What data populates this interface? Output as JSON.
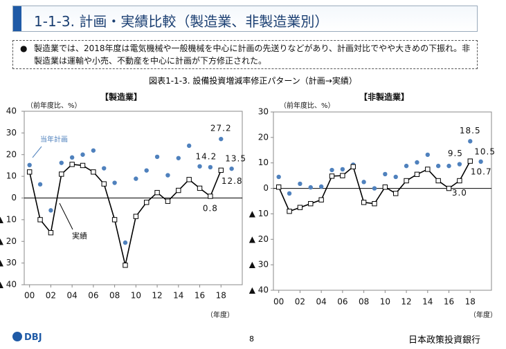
{
  "header": {
    "title": "1-1-3. 計画・実績比較（製造業、非製造業別）"
  },
  "note": {
    "bullet": "●",
    "text": "製造業では、2018年度は電気機械や一般機械を中心に計画の先送りなどがあり、計画対比でやや大きめの下振れ。非製造業は運輸や小売、不動産を中心に計画が下方修正された。"
  },
  "figure_caption": "図表1-1-3. 設備投資増減率修正パターン（計画→実績）",
  "chart_data": [
    {
      "type": "line",
      "title": "【製造業】",
      "y_label": "（前年度比、%）",
      "x_label": "（年度）",
      "x": [
        0,
        1,
        2,
        3,
        4,
        5,
        6,
        7,
        8,
        9,
        10,
        11,
        12,
        13,
        14,
        15,
        16,
        17,
        18,
        19
      ],
      "xlim": [
        -0.5,
        20
      ],
      "xticks": [
        {
          "value": 0,
          "label": "00"
        },
        {
          "value": 2,
          "label": "02"
        },
        {
          "value": 4,
          "label": "04"
        },
        {
          "value": 6,
          "label": "06"
        },
        {
          "value": 8,
          "label": "08"
        },
        {
          "value": 10,
          "label": "10"
        },
        {
          "value": 12,
          "label": "12"
        },
        {
          "value": 14,
          "label": "14"
        },
        {
          "value": 16,
          "label": "16"
        },
        {
          "value": 18,
          "label": "18"
        }
      ],
      "ylim": [
        -40,
        40
      ],
      "yticks": [
        40,
        30,
        20,
        10,
        0,
        {
          "value": -10,
          "label": "▲ 10"
        },
        {
          "value": -20,
          "label": "▲ 20"
        },
        {
          "value": -30,
          "label": "▲ 30"
        },
        {
          "value": -40,
          "label": "▲ 40"
        }
      ],
      "series": [
        {
          "name": "当年計画",
          "color": "#4f81bd",
          "marker": "dot",
          "values": [
            15.2,
            6.3,
            -5.7,
            16.2,
            18.7,
            20,
            21.9,
            13.7,
            7,
            -20.6,
            8.9,
            12.7,
            19,
            10.5,
            18.4,
            24.1,
            14.6,
            14.2,
            27.2,
            13.5
          ],
          "value_labels": [
            null,
            null,
            null,
            null,
            null,
            null,
            null,
            null,
            null,
            null,
            null,
            null,
            null,
            null,
            null,
            null,
            null,
            "14.2",
            "27.2",
            "13.5"
          ]
        },
        {
          "name": "実績",
          "color": "#000000",
          "marker": "square",
          "values": [
            12,
            -10,
            -16,
            11,
            15.5,
            15,
            12,
            6.5,
            -10,
            -31,
            -8.5,
            -2,
            2.5,
            -1.5,
            3.5,
            8.5,
            4.5,
            0.8,
            12.8,
            null
          ],
          "value_labels": [
            null,
            null,
            null,
            null,
            null,
            null,
            null,
            null,
            null,
            null,
            null,
            null,
            null,
            null,
            null,
            null,
            null,
            "0.8",
            "12.8",
            null
          ]
        }
      ]
    },
    {
      "type": "line",
      "title": "【非製造業】",
      "y_label": "（前年度比、%）",
      "x_label": "（年度）",
      "x": [
        0,
        1,
        2,
        3,
        4,
        5,
        6,
        7,
        8,
        9,
        10,
        11,
        12,
        13,
        14,
        15,
        16,
        17,
        18,
        19
      ],
      "xlim": [
        -0.5,
        20
      ],
      "xticks": [
        {
          "value": 0,
          "label": "00"
        },
        {
          "value": 2,
          "label": "02"
        },
        {
          "value": 4,
          "label": "04"
        },
        {
          "value": 6,
          "label": "06"
        },
        {
          "value": 8,
          "label": "08"
        },
        {
          "value": 10,
          "label": "10"
        },
        {
          "value": 12,
          "label": "12"
        },
        {
          "value": 14,
          "label": "14"
        },
        {
          "value": 16,
          "label": "16"
        },
        {
          "value": 18,
          "label": "18"
        }
      ],
      "ylim": [
        -40,
        30
      ],
      "yticks": [
        30,
        20,
        10,
        0,
        {
          "value": -10,
          "label": "▲ 10"
        },
        {
          "value": -20,
          "label": "▲ 20"
        },
        {
          "value": -30,
          "label": "▲ 30"
        },
        {
          "value": -40,
          "label": "▲ 40"
        }
      ],
      "series": [
        {
          "name": "当年計画",
          "color": "#4f81bd",
          "marker": "dot",
          "values": [
            4.5,
            -2,
            1.8,
            0.4,
            0.7,
            7.2,
            7.5,
            9.3,
            2.5,
            0,
            5.6,
            4.5,
            8.8,
            10.2,
            13.2,
            8.8,
            8.8,
            9.5,
            18.5,
            10.5
          ],
          "value_labels": [
            null,
            null,
            null,
            null,
            null,
            null,
            null,
            null,
            null,
            null,
            null,
            null,
            null,
            null,
            null,
            null,
            null,
            "9.5",
            "18.5",
            "10.5"
          ]
        },
        {
          "name": "実績",
          "color": "#000000",
          "marker": "square",
          "values": [
            0.5,
            -9,
            -7.5,
            -6,
            -4.5,
            4.8,
            5,
            8.5,
            -5.5,
            -6,
            0.5,
            -2,
            3,
            5.5,
            7.5,
            3,
            0,
            3,
            10.7,
            null
          ],
          "value_labels": [
            null,
            null,
            null,
            null,
            null,
            null,
            null,
            null,
            null,
            null,
            null,
            null,
            null,
            null,
            null,
            null,
            null,
            "3.0",
            "10.7",
            null
          ]
        }
      ]
    }
  ],
  "footer": {
    "logo": "DBJ",
    "page": "8",
    "org": "日本政策投資銀行"
  }
}
